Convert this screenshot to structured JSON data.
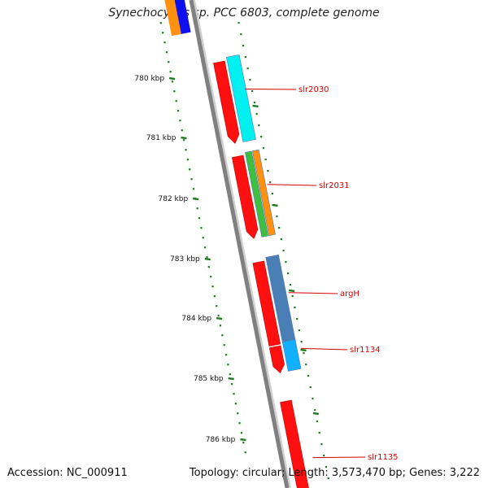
{
  "title": "Synechocystis sp. PCC 6803, complete genome",
  "footer": {
    "accession": "Accession: NC_000911",
    "stats": "Topology: circular; Length: 3,573,470 bp; Genes: 3,222"
  },
  "colors": {
    "backbone": "#808080",
    "tick": "#1e7a1e",
    "label": "#d40000",
    "cds": "#ff1010"
  },
  "scale": {
    "ticks": [
      {
        "label": "780 kbp"
      },
      {
        "label": "781 kbp"
      },
      {
        "label": "782 kbp"
      },
      {
        "label": "783 kbp"
      },
      {
        "label": "784 kbp"
      },
      {
        "label": "785 kbp"
      },
      {
        "label": "786 kbp"
      }
    ]
  },
  "features": [
    {
      "name": "slr2030",
      "colors": [
        "#ff1010",
        "#00f0f0"
      ]
    },
    {
      "name": "slr2031",
      "colors": [
        "#ff1010",
        "#3fbf3f",
        "#ff9010"
      ]
    },
    {
      "name": "argH",
      "colors": [
        "#ff1010",
        "#4a7fb5"
      ]
    },
    {
      "name": "slr1134",
      "colors": [
        "#ff1010",
        "#10b0ff"
      ]
    },
    {
      "name": "slr1135",
      "colors": [
        "#ff1010"
      ]
    }
  ]
}
